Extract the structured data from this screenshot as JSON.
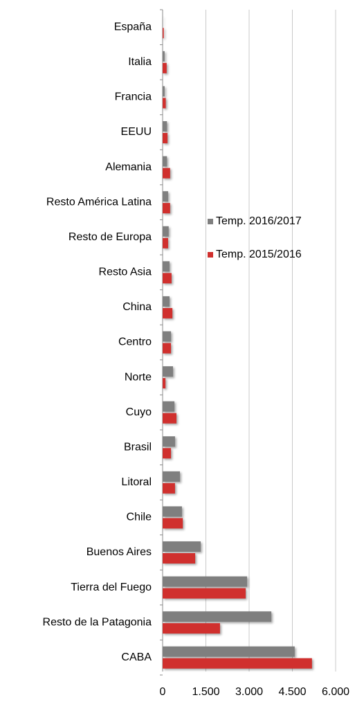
{
  "chart_data": {
    "type": "bar",
    "orientation": "horizontal",
    "categories": [
      "España",
      "Italia",
      "Francia",
      "EEUU",
      "Alemania",
      "Resto América Latina",
      "Resto de Europa",
      "Resto Asia",
      "China",
      "Centro",
      "Norte",
      "Cuyo",
      "Brasil",
      "Litoral",
      "Chile",
      "Buenos Aires",
      "Tierra del Fuego",
      "Resto de la Patagonia",
      "CABA"
    ],
    "series": [
      {
        "name": "Temp. 2016/2017",
        "color": "#7f7f7f",
        "values": [
          10,
          70,
          70,
          150,
          150,
          190,
          210,
          240,
          240,
          290,
          360,
          410,
          430,
          600,
          670,
          1320,
          2930,
          3770,
          4580
        ]
      },
      {
        "name": "Temp. 2015/2016",
        "color": "#d0302e",
        "values": [
          40,
          140,
          110,
          170,
          260,
          260,
          190,
          310,
          340,
          290,
          100,
          480,
          290,
          430,
          700,
          1130,
          2880,
          1990,
          5180
        ]
      }
    ],
    "xlim": [
      0,
      6000
    ],
    "xticks": [
      0,
      {
        "value": 1500,
        "label": "1.500"
      },
      {
        "value": 3000,
        "label": "3.000"
      },
      {
        "value": 4500,
        "label": "4.500"
      },
      {
        "value": 6000,
        "label": "6.000"
      }
    ],
    "grid": true,
    "legend": "right"
  }
}
